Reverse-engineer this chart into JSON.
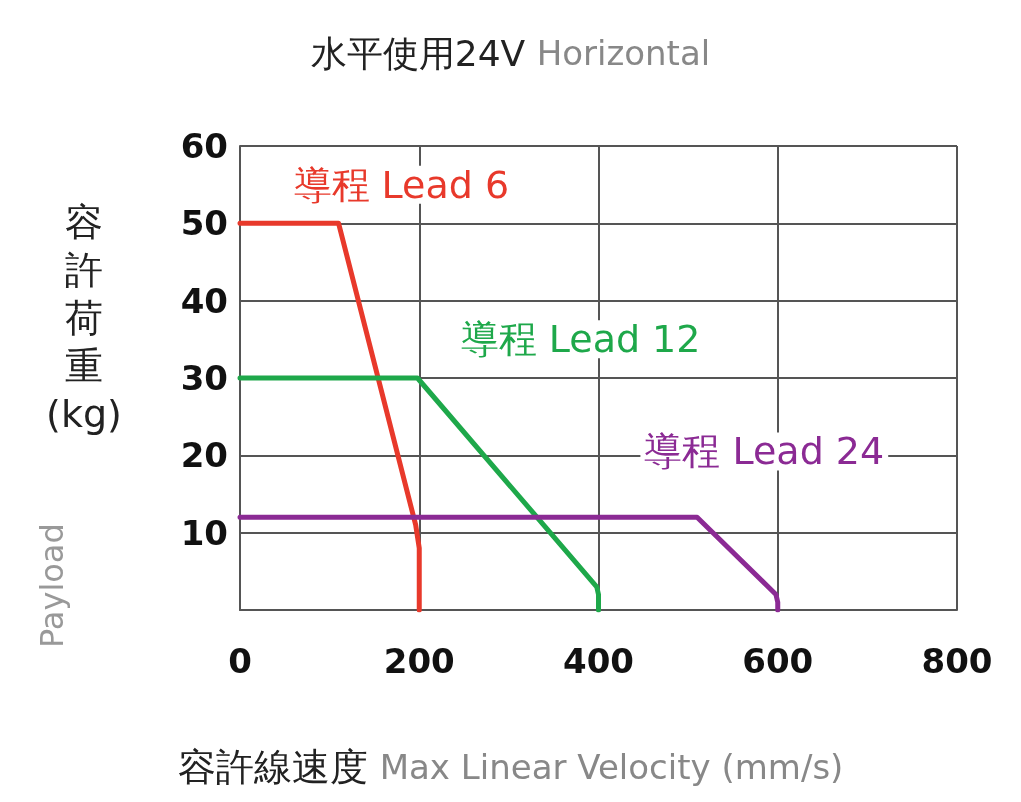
{
  "chart_data": {
    "type": "line",
    "title": "水平使用24V Horizontal",
    "xlabel": "容許線速度 Max Linear Velocity (mm/s)",
    "ylabel": "容許荷重(kg) Payload",
    "xlim": [
      0,
      800
    ],
    "xticks": [
      0,
      200,
      400,
      600,
      800
    ],
    "ylim": [
      0,
      60
    ],
    "yticks": [
      {
        "value": 0,
        "label": null
      },
      10,
      20,
      30,
      40,
      50,
      60
    ],
    "grid": true,
    "legend": false,
    "marker": "none",
    "line_style": "solid",
    "series": [
      {
        "name": "導程 Lead 6",
        "color": "#e8392b",
        "x": [
          0,
          110,
          196,
          200,
          200
        ],
        "values": [
          50,
          50,
          11,
          8,
          0
        ]
      },
      {
        "name": "導程 Lead 12",
        "color": "#1ea84a",
        "x": [
          0,
          198,
          398,
          400,
          400
        ],
        "values": [
          30,
          30,
          3,
          2,
          0
        ]
      },
      {
        "name": "導程 Lead 24",
        "color": "#8b2a94",
        "x": [
          0,
          510,
          598,
          600,
          600
        ],
        "values": [
          12,
          12,
          2,
          1,
          0
        ]
      }
    ]
  }
}
